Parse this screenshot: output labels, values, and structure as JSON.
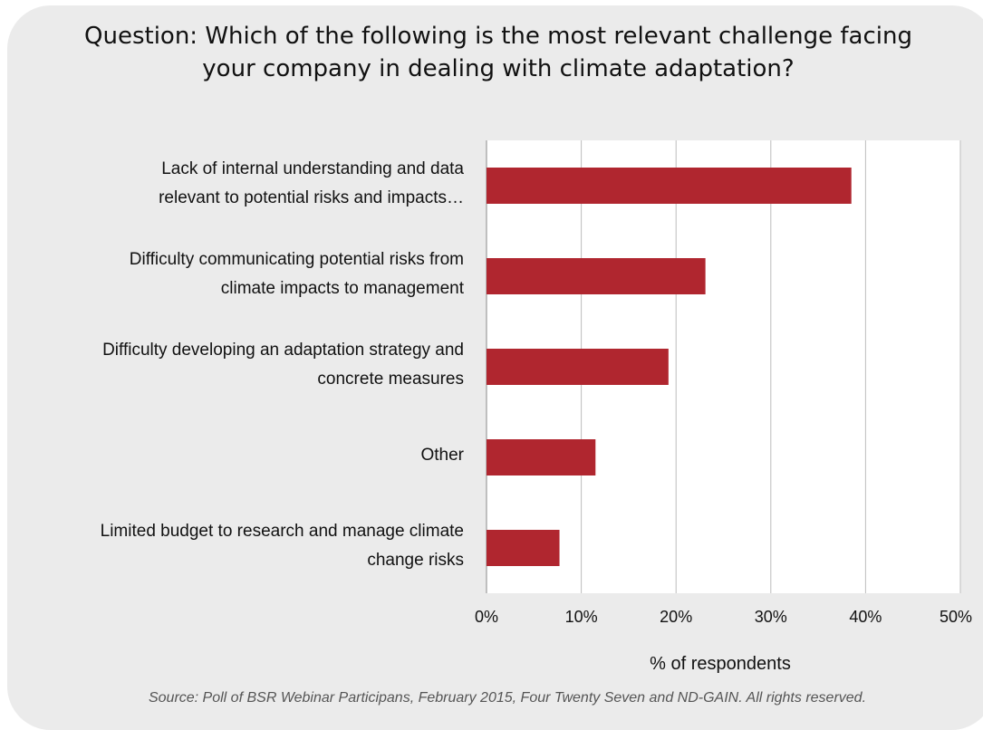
{
  "chart_data": {
    "type": "bar",
    "orientation": "horizontal",
    "title": "Question: Which of the following is the most relevant challenge facing your company in dealing with climate adaptation?",
    "title_lines": [
      "Question: Which of the following is the most relevant challenge facing",
      "your company in dealing with climate adaptation?"
    ],
    "categories": [
      [
        "Lack of internal understanding and data",
        "relevant to potential risks and impacts…"
      ],
      [
        "Difficulty communicating potential risks from",
        "climate impacts to management"
      ],
      [
        "Difficulty developing an adaptation strategy and",
        "concrete measures"
      ],
      [
        "Other"
      ],
      [
        "Limited budget to research and manage climate",
        "change risks"
      ]
    ],
    "values": [
      38.5,
      23.1,
      19.2,
      11.5,
      7.7
    ],
    "xlabel": "% of respondents",
    "xlim": [
      0,
      50
    ],
    "ticks": [
      "0%",
      "10%",
      "20%",
      "30%",
      "40%",
      "50%"
    ],
    "grid": true,
    "bar_color": "#b0262f",
    "source": "Source: Poll of BSR Webinar Participans, February 2015, Four Twenty Seven and ND-GAIN. All rights reserved."
  }
}
